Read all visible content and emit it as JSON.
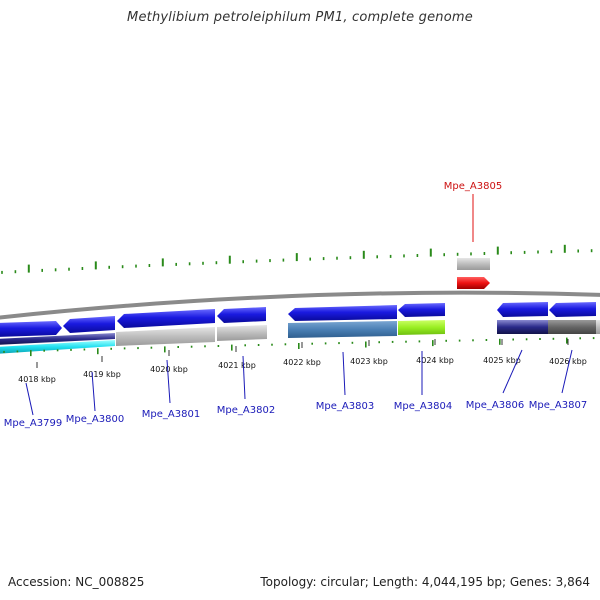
{
  "title": "Methylibium petroleiphilum PM1, complete genome",
  "footer": {
    "accession": "Accession: NC_008825",
    "summary": "Topology: circular; Length: 4,044,195 bp; Genes: 3,864"
  },
  "kbp_labels": [
    "4018 kbp",
    "4019 kbp",
    "4020 kbp",
    "4021 kbp",
    "4022 kbp",
    "4023 kbp",
    "4024 kbp",
    "4025 kbp",
    "4026 kbp"
  ],
  "gene_labels": [
    "Mpe_A3799",
    "Mpe_A3800",
    "Mpe_A3801",
    "Mpe_A3802",
    "Mpe_A3803",
    "Mpe_A3804",
    "Mpe_A3806",
    "Mpe_A3807"
  ],
  "highlight_label": "Mpe_A3805",
  "colors": {
    "gene_blue": "#1a1ad8",
    "highlight_red": "#e01010",
    "gc_green": "#2a8a1a",
    "backbone": "#808080"
  }
}
